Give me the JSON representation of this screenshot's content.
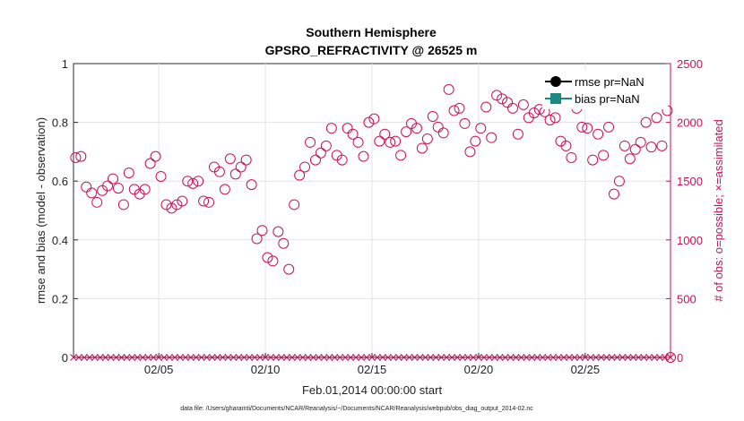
{
  "chart_data": {
    "type": "scatter",
    "title": "Southern Hemisphere",
    "subtitle": "GPSRO_REFRACTIVITY @ 26525 m",
    "xlabel": "Feb.01,2014 00:00:00 start",
    "ylabel_left": "rmse and bias (model - observation)",
    "ylabel_right": "# of obs: o=possible; ×=assimilated",
    "x_range": [
      1,
      29
    ],
    "x_ticks": [
      5,
      10,
      15,
      20,
      25
    ],
    "x_tick_labels": [
      "02/05",
      "02/10",
      "02/15",
      "02/20",
      "02/25"
    ],
    "ylim_left": [
      0,
      1
    ],
    "y_ticks_left": [
      "0",
      "0.2",
      "0.4",
      "0.6",
      "0.8",
      "1"
    ],
    "ylim_right": [
      0,
      2500
    ],
    "y_ticks_right": [
      "0",
      "500",
      "1000",
      "1500",
      "2000",
      "2500"
    ],
    "legend": [
      {
        "name": "rmse pr=NaN",
        "color": "#000000",
        "marker": "circle"
      },
      {
        "name": "bias pr=NaN",
        "color": "#1a8a80",
        "marker": "square"
      }
    ],
    "legend_position": "top-right",
    "series": [
      {
        "name": "possible",
        "marker": "open-circle",
        "color": "#cc0f5a",
        "axis": "right",
        "x": [
          1.1,
          1.35,
          1.6,
          1.85,
          2.1,
          2.35,
          2.6,
          2.85,
          3.1,
          3.35,
          3.6,
          3.85,
          4.1,
          4.35,
          4.6,
          4.85,
          5.1,
          5.35,
          5.6,
          5.85,
          6.1,
          6.35,
          6.6,
          6.85,
          7.1,
          7.35,
          7.6,
          7.85,
          8.1,
          8.35,
          8.6,
          8.85,
          9.1,
          9.35,
          9.6,
          9.85,
          10.1,
          10.35,
          10.6,
          10.85,
          11.1,
          11.35,
          11.6,
          11.85,
          12.1,
          12.35,
          12.6,
          12.85,
          13.1,
          13.35,
          13.6,
          13.85,
          14.1,
          14.35,
          14.6,
          14.85,
          15.1,
          15.35,
          15.6,
          15.85,
          16.1,
          16.35,
          16.6,
          16.85,
          17.1,
          17.35,
          17.6,
          17.85,
          18.1,
          18.35,
          18.6,
          18.85,
          19.1,
          19.35,
          19.6,
          19.85,
          20.1,
          20.35,
          20.6,
          20.85,
          21.1,
          21.35,
          21.6,
          21.85,
          22.1,
          22.35,
          22.6,
          22.85,
          23.1,
          23.35,
          23.6,
          23.85,
          24.1,
          24.35,
          24.6,
          24.85,
          25.1,
          25.35,
          25.6,
          25.85,
          26.1,
          26.35,
          26.6,
          26.85,
          27.1,
          27.35,
          27.6,
          27.85,
          28.1,
          28.35,
          28.6,
          28.85
        ],
        "values": [
          1700,
          1710,
          1450,
          1400,
          1320,
          1420,
          1460,
          1520,
          1440,
          1300,
          1570,
          1430,
          1390,
          1430,
          1650,
          1710,
          1540,
          1300,
          1270,
          1300,
          1330,
          1500,
          1480,
          1500,
          1330,
          1320,
          1620,
          1580,
          1430,
          1690,
          1560,
          1620,
          1680,
          1470,
          1010,
          1080,
          850,
          820,
          1070,
          970,
          750,
          1300,
          1550,
          1620,
          1830,
          1680,
          1740,
          1800,
          1950,
          1720,
          1680,
          1950,
          1900,
          1830,
          1710,
          2000,
          2030,
          1840,
          1900,
          1830,
          1840,
          1720,
          1920,
          1990,
          1950,
          1780,
          1860,
          2050,
          1960,
          1910,
          2280,
          2100,
          2120,
          1990,
          1750,
          1840,
          1950,
          2130,
          1870,
          2230,
          2200,
          2170,
          2120,
          1900,
          2150,
          2040,
          2080,
          2110,
          2090,
          2020,
          2040,
          1840,
          1800,
          1700,
          2120,
          1960,
          1950,
          1680,
          1900,
          1720,
          1960,
          1390,
          1500,
          1800,
          1690,
          1770,
          1830,
          2000,
          1790,
          2040,
          1800,
          2100
        ]
      },
      {
        "name": "assimilated",
        "marker": "x",
        "color": "#cc0f5a",
        "axis": "right",
        "description": "one per time step along the x range",
        "values_constant": 0
      }
    ]
  },
  "footer_note": "data file: /Users/gharamti/Documents/NCAR/Reanalysis/~/Documents/NCAR/Reanalysis/webpub/obs_diag_output_2014-02.nc"
}
